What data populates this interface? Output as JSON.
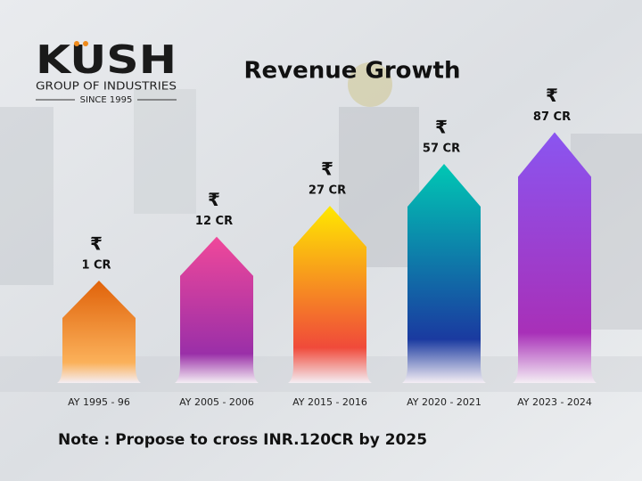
{
  "logo": {
    "name": "KUSH",
    "tagline": "GROUP OF INDUSTRIES",
    "since": "SINCE 1995"
  },
  "chart_data": {
    "type": "bar",
    "title": "Revenue Growth",
    "categories": [
      "AY 1995 - 96",
      "AY 2005 - 2006",
      "AY 2015 - 2016",
      "AY 2020 - 2021",
      "AY 2023 - 2024"
    ],
    "values": [
      1,
      12,
      27,
      57,
      87
    ],
    "value_labels": [
      "1 CR",
      "12 CR",
      "27 CR",
      "57 CR",
      "87 CR"
    ],
    "currency_symbol": "₹",
    "colors": [
      [
        "#e0620a",
        "#fbb15a"
      ],
      [
        "#f0489a",
        "#9a2fa8"
      ],
      [
        "#ffe800",
        "#f04a3a"
      ],
      [
        "#00c8b4",
        "#1a3aa0"
      ],
      [
        "#8a55f0",
        "#a830b8"
      ]
    ],
    "note": "Note : Propose to cross INR.120CR by 2025"
  }
}
